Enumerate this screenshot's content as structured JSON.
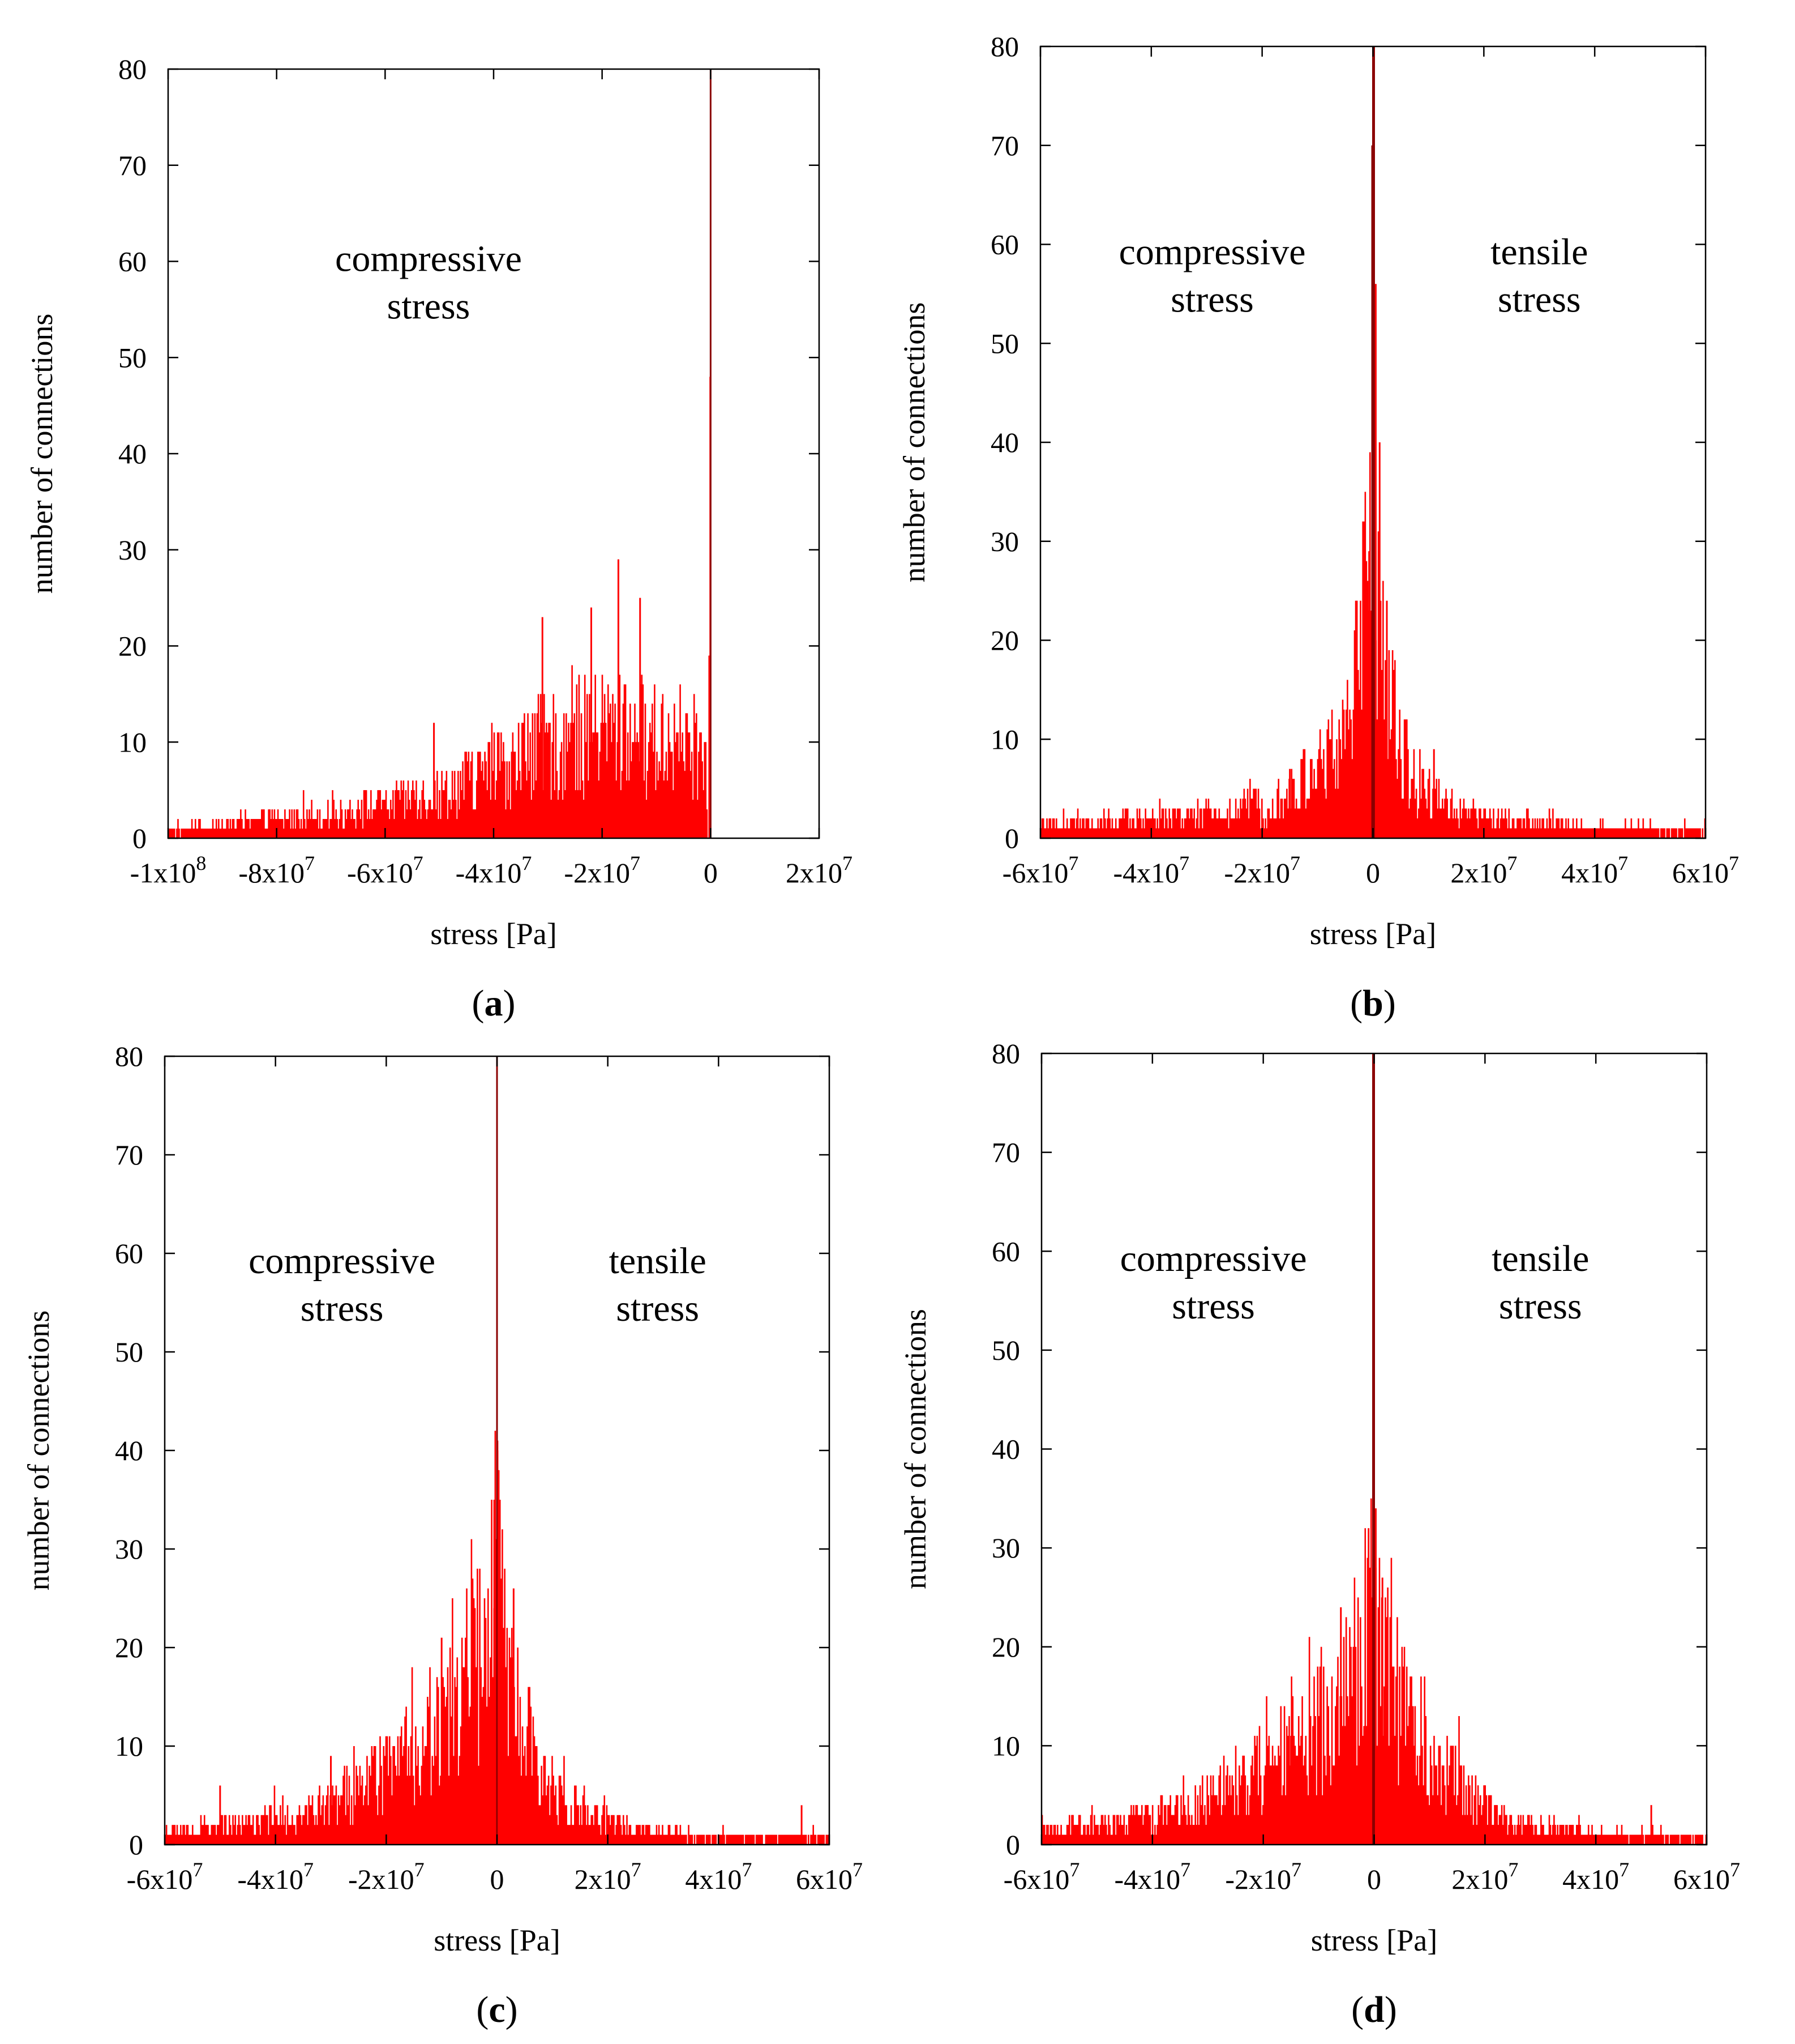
{
  "chart_data": [
    {
      "id": "a",
      "type": "bar",
      "panel_label": "a",
      "xlabel": "stress [Pa]",
      "ylabel": "number of connections",
      "xlim": [
        -100000000,
        20000000
      ],
      "ylim": [
        0,
        80
      ],
      "xticks": [
        {
          "value": -100000000,
          "mant": "-1x10",
          "exp": "8"
        },
        {
          "value": -80000000,
          "mant": "-8x10",
          "exp": "7"
        },
        {
          "value": -60000000,
          "mant": "-6x10",
          "exp": "7"
        },
        {
          "value": -40000000,
          "mant": "-4x10",
          "exp": "7"
        },
        {
          "value": -20000000,
          "mant": "-2x10",
          "exp": "7"
        },
        {
          "value": 0,
          "mant": "0",
          "exp": ""
        },
        {
          "value": 20000000,
          "mant": "2x10",
          "exp": "7"
        }
      ],
      "yticks": [
        0,
        10,
        20,
        30,
        40,
        50,
        60,
        70,
        80
      ],
      "annotations": [
        {
          "lines": [
            "compressive",
            "stress"
          ],
          "x": -52000000,
          "y": 59
        }
      ],
      "color": "#ff0000",
      "spike_color": "#8b0000",
      "profile": [
        [
          -100000000,
          1
        ],
        [
          -90000000,
          1.5
        ],
        [
          -80000000,
          2.2
        ],
        [
          -70000000,
          3
        ],
        [
          -60000000,
          4
        ],
        [
          -50000000,
          5.5
        ],
        [
          -40000000,
          8
        ],
        [
          -30000000,
          11
        ],
        [
          -20000000,
          13
        ],
        [
          -10000000,
          12
        ],
        [
          -3000000,
          11
        ],
        [
          -500000,
          9
        ]
      ],
      "spikes": [
        {
          "x": 0,
          "y": 80
        },
        {
          "x": -60000,
          "y": 48
        },
        {
          "x": -250000,
          "y": 19
        },
        {
          "x": -17000000,
          "y": 29
        },
        {
          "x": -31000000,
          "y": 23
        },
        {
          "x": -17000000,
          "y": 29
        },
        {
          "x": -13000000,
          "y": 25
        },
        {
          "x": -22000000,
          "y": 24
        },
        {
          "x": -51000000,
          "y": 12
        }
      ]
    },
    {
      "id": "b",
      "type": "bar",
      "panel_label": "b",
      "xlabel": "stress [Pa]",
      "ylabel": "number of connections",
      "xlim": [
        -60000000,
        60000000
      ],
      "ylim": [
        0,
        80
      ],
      "xticks": [
        {
          "value": -60000000,
          "mant": "-6x10",
          "exp": "7"
        },
        {
          "value": -40000000,
          "mant": "-4x10",
          "exp": "7"
        },
        {
          "value": -20000000,
          "mant": "-2x10",
          "exp": "7"
        },
        {
          "value": 0,
          "mant": "0",
          "exp": ""
        },
        {
          "value": 20000000,
          "mant": "2x10",
          "exp": "7"
        },
        {
          "value": 40000000,
          "mant": "4x10",
          "exp": "7"
        },
        {
          "value": 60000000,
          "mant": "6x10",
          "exp": "7"
        }
      ],
      "yticks": [
        0,
        10,
        20,
        30,
        40,
        50,
        60,
        70,
        80
      ],
      "annotations": [
        {
          "lines": [
            "compressive",
            "stress"
          ],
          "x": -29000000,
          "y": 58
        },
        {
          "lines": [
            "tensile",
            "stress"
          ],
          "x": 30000000,
          "y": 58
        }
      ],
      "color": "#ff0000",
      "spike_color": "#8b0000",
      "profile": [
        [
          -60000000,
          1.4
        ],
        [
          -40000000,
          2.2
        ],
        [
          -25000000,
          3
        ],
        [
          -15000000,
          5
        ],
        [
          -8000000,
          9
        ],
        [
          -4000000,
          14
        ],
        [
          -2000000,
          22
        ],
        [
          -700000,
          32
        ],
        [
          0,
          48
        ],
        [
          700000,
          30
        ],
        [
          2000000,
          20
        ],
        [
          4000000,
          12
        ],
        [
          8000000,
          6
        ],
        [
          15000000,
          3
        ],
        [
          25000000,
          2
        ],
        [
          40000000,
          1.3
        ],
        [
          60000000,
          1
        ]
      ],
      "spikes": [
        {
          "x": 0,
          "y": 80
        },
        {
          "x": 200000,
          "y": 80
        },
        {
          "x": -150000,
          "y": 70
        },
        {
          "x": 500000,
          "y": 56
        },
        {
          "x": 1200000,
          "y": 40
        },
        {
          "x": -700000,
          "y": 29
        },
        {
          "x": 2500000,
          "y": 24
        },
        {
          "x": -3000000,
          "y": 21
        },
        {
          "x": 11000000,
          "y": 9
        },
        {
          "x": -15000000,
          "y": 7
        }
      ]
    },
    {
      "id": "c",
      "type": "bar",
      "panel_label": "c",
      "xlabel": "stress [Pa]",
      "ylabel": "number of connections",
      "xlim": [
        -60000000,
        60000000
      ],
      "ylim": [
        0,
        80
      ],
      "xticks": [
        {
          "value": -60000000,
          "mant": "-6x10",
          "exp": "7"
        },
        {
          "value": -40000000,
          "mant": "-4x10",
          "exp": "7"
        },
        {
          "value": -20000000,
          "mant": "-2x10",
          "exp": "7"
        },
        {
          "value": 0,
          "mant": "0",
          "exp": ""
        },
        {
          "value": 20000000,
          "mant": "2x10",
          "exp": "7"
        },
        {
          "value": 40000000,
          "mant": "4x10",
          "exp": "7"
        },
        {
          "value": 60000000,
          "mant": "6x10",
          "exp": "7"
        }
      ],
      "yticks": [
        0,
        10,
        20,
        30,
        40,
        50,
        60,
        70,
        80
      ],
      "annotations": [
        {
          "lines": [
            "compressive",
            "stress"
          ],
          "x": -28000000,
          "y": 58
        },
        {
          "lines": [
            "tensile",
            "stress"
          ],
          "x": 29000000,
          "y": 58
        }
      ],
      "color": "#ff0000",
      "spike_color": "#8b0000",
      "profile": [
        [
          -60000000,
          1.6
        ],
        [
          -45000000,
          2.4
        ],
        [
          -35000000,
          3.5
        ],
        [
          -25000000,
          6
        ],
        [
          -15000000,
          11
        ],
        [
          -8000000,
          16
        ],
        [
          -3000000,
          21
        ],
        [
          -800000,
          28
        ],
        [
          0,
          34
        ],
        [
          800000,
          24
        ],
        [
          3000000,
          16
        ],
        [
          8000000,
          8
        ],
        [
          15000000,
          4
        ],
        [
          25000000,
          1.6
        ],
        [
          40000000,
          1
        ],
        [
          60000000,
          1
        ]
      ],
      "spikes": [
        {
          "x": 0,
          "y": 80
        },
        {
          "x": 100000,
          "y": 40
        },
        {
          "x": -500000,
          "y": 35
        },
        {
          "x": -4000000,
          "y": 24
        },
        {
          "x": 3000000,
          "y": 26
        },
        {
          "x": -10000000,
          "y": 21
        },
        {
          "x": -30000000,
          "y": 9
        },
        {
          "x": -50000000,
          "y": 6
        },
        {
          "x": 55000000,
          "y": 4
        }
      ]
    },
    {
      "id": "d",
      "type": "bar",
      "panel_label": "d",
      "xlabel": "stress [Pa]",
      "ylabel": "number of connections",
      "xlim": [
        -60000000,
        60000000
      ],
      "ylim": [
        0,
        80
      ],
      "xticks": [
        {
          "value": -60000000,
          "mant": "-6x10",
          "exp": "7"
        },
        {
          "value": -40000000,
          "mant": "-4x10",
          "exp": "7"
        },
        {
          "value": -20000000,
          "mant": "-2x10",
          "exp": "7"
        },
        {
          "value": 0,
          "mant": "0",
          "exp": ""
        },
        {
          "value": 20000000,
          "mant": "2x10",
          "exp": "7"
        },
        {
          "value": 40000000,
          "mant": "4x10",
          "exp": "7"
        },
        {
          "value": 60000000,
          "mant": "6x10",
          "exp": "7"
        }
      ],
      "yticks": [
        0,
        10,
        20,
        30,
        40,
        50,
        60,
        70,
        80
      ],
      "annotations": [
        {
          "lines": [
            "compressive",
            "stress"
          ],
          "x": -29000000,
          "y": 58
        },
        {
          "lines": [
            "tensile",
            "stress"
          ],
          "x": 30000000,
          "y": 58
        }
      ],
      "color": "#ff0000",
      "spike_color": "#8b0000",
      "profile": [
        [
          -60000000,
          1.6
        ],
        [
          -45000000,
          2.6
        ],
        [
          -35000000,
          4
        ],
        [
          -25000000,
          6.5
        ],
        [
          -15000000,
          11
        ],
        [
          -8000000,
          15
        ],
        [
          -3000000,
          20
        ],
        [
          -800000,
          25
        ],
        [
          0,
          30
        ],
        [
          800000,
          22
        ],
        [
          3000000,
          18
        ],
        [
          8000000,
          13
        ],
        [
          15000000,
          7
        ],
        [
          25000000,
          2.5
        ],
        [
          40000000,
          1.3
        ],
        [
          60000000,
          1
        ]
      ],
      "spikes": [
        {
          "x": 0,
          "y": 80
        },
        {
          "x": -200000,
          "y": 80
        },
        {
          "x": 300000,
          "y": 34
        },
        {
          "x": -1000000,
          "y": 32
        },
        {
          "x": 1500000,
          "y": 27
        },
        {
          "x": -6000000,
          "y": 24
        },
        {
          "x": -15000000,
          "y": 11
        },
        {
          "x": 7000000,
          "y": 14
        },
        {
          "x": 50000000,
          "y": 4
        }
      ]
    }
  ]
}
